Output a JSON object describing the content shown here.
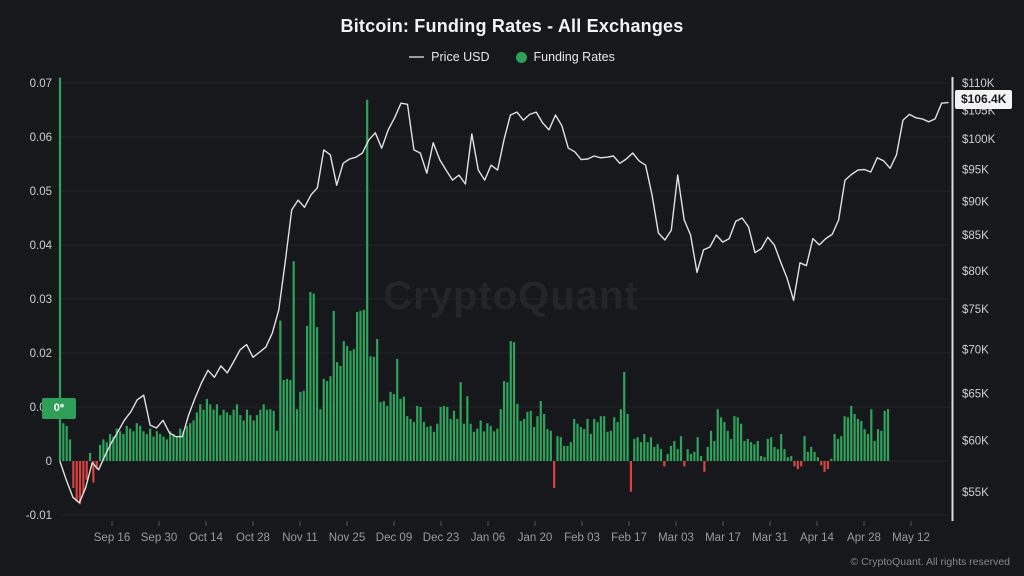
{
  "header": {
    "title": "Bitcoin: Funding Rates - All Exchanges",
    "legend": [
      {
        "label": "Price USD",
        "swatch": "line"
      },
      {
        "label": "Funding Rates",
        "swatch": "dot"
      }
    ]
  },
  "watermark": "CryptoQuant",
  "badges": {
    "current_price": "$106.4K",
    "current_funding": "0*"
  },
  "footer": {
    "copyright": "© CryptoQuant. All rights reserved"
  },
  "colors": {
    "background": "#17181b",
    "grid": "#222329",
    "axis_text": "#cdced1",
    "x_text": "#989aa0",
    "tick": "#53555b",
    "positive": "#2ea35c",
    "negative": "#d84340",
    "price_line": "#dfe0e2",
    "right_axis_line": "#d9dadc",
    "watermark": "#23252b"
  },
  "chart_data": {
    "type": "composite",
    "title": "Bitcoin: Funding Rates - All Exchanges",
    "subtitle_legend": [
      "Price USD",
      "Funding Rates"
    ],
    "x_axis": {
      "tick_labels": [
        "Sep 16",
        "Sep 30",
        "Oct 14",
        "Oct 28",
        "Nov 11",
        "Nov 25",
        "Dec 09",
        "Dec 23",
        "Jan 06",
        "Jan 20",
        "Feb 03",
        "Feb 17",
        "Mar 03",
        "Mar 17",
        "Mar 31",
        "Apr 14",
        "Apr 28",
        "May 12"
      ],
      "granularity": "daily"
    },
    "left_axis": {
      "name": "Funding Rates",
      "scale": "linear",
      "values": [
        0.07,
        0.06,
        0.05,
        0.04,
        0.03,
        0.02,
        0.01,
        0,
        -0.01
      ],
      "labels": [
        "0.07",
        "0.06",
        "0.05",
        "0.04",
        "0.03",
        "0.02",
        "0.01",
        "0",
        "-0.01"
      ],
      "range": [
        -0.013,
        0.071
      ]
    },
    "right_axis": {
      "name": "Price USD",
      "scale": "log",
      "values_k": [
        110,
        105,
        100,
        95,
        90,
        85,
        80,
        75,
        70,
        65,
        60,
        55
      ],
      "labels": [
        "$110K",
        "$105K",
        "$100K",
        "$95K",
        "$90K",
        "$85K",
        "$80K",
        "$75K",
        "$70K",
        "$65K",
        "$60K",
        "$55K"
      ],
      "last_value_label": "$106.4K"
    },
    "series": [
      {
        "name": "Price USD",
        "type": "line",
        "axis": "right",
        "unit": "USD thousands",
        "values": [
          57.9,
          56.1,
          54.5,
          54.0,
          55.4,
          57.8,
          57.1,
          58.5,
          59.8,
          60.9,
          62.1,
          63.0,
          64.3,
          64.8,
          61.6,
          61.3,
          62.1,
          60.8,
          60.4,
          60.4,
          62.7,
          64.5,
          66.2,
          67.6,
          66.8,
          68.1,
          67.3,
          68.6,
          70.0,
          70.6,
          69.1,
          69.7,
          70.3,
          72.0,
          74.9,
          81.2,
          88.7,
          90.2,
          89.1,
          91.0,
          92.1,
          98.2,
          97.4,
          92.5,
          96.0,
          96.7,
          97.0,
          97.7,
          99.9,
          101.1,
          98.5,
          101.6,
          103.7,
          106.3,
          106.1,
          98.2,
          97.7,
          94.4,
          99.4,
          96.6,
          94.9,
          93.3,
          94.1,
          92.7,
          100.9,
          94.9,
          93.3,
          95.7,
          94.9,
          99.9,
          104.2,
          104.7,
          103.3,
          104.3,
          104.7,
          102.8,
          101.6,
          104.2,
          102.3,
          98.5,
          97.9,
          96.6,
          96.7,
          97.2,
          96.9,
          97.0,
          97.2,
          96.0,
          96.7,
          97.7,
          96.4,
          95.7,
          91.0,
          85.3,
          84.3,
          85.7,
          94.1,
          87.2,
          85.0,
          79.8,
          82.9,
          83.3,
          85.0,
          84.0,
          84.5,
          87.0,
          87.5,
          86.2,
          82.5,
          83.1,
          84.7,
          83.6,
          81.2,
          79.0,
          76.1,
          81.1,
          80.7,
          84.5,
          83.6,
          84.5,
          85.1,
          87.2,
          93.3,
          94.2,
          94.9,
          95.0,
          94.6,
          96.9,
          96.4,
          95.2,
          97.4,
          103.3,
          104.3,
          103.7,
          103.5,
          103.0,
          103.5,
          106.3,
          106.4
        ]
      },
      {
        "name": "Funding Rates",
        "type": "bar",
        "axis": "left",
        "values": [
          0.071,
          0.007,
          0.0065,
          0.004,
          -0.005,
          -0.0075,
          -0.008,
          -0.006,
          -0.0035,
          0.0015,
          -0.004,
          -0.0015,
          0.003,
          0.004,
          0.0035,
          0.005,
          0.0045,
          0.006,
          0.0055,
          0.005,
          0.0065,
          0.006,
          0.0055,
          0.007,
          0.0065,
          0.0055,
          0.005,
          0.006,
          0.0045,
          0.0055,
          0.005,
          0.0045,
          0.004,
          0.0055,
          0.005,
          0.0045,
          0.006,
          0.0055,
          0.0065,
          0.007,
          0.0075,
          0.009,
          0.0105,
          0.0095,
          0.0115,
          0.0105,
          0.0095,
          0.0105,
          0.0085,
          0.0095,
          0.009,
          0.0085,
          0.0095,
          0.0105,
          0.0085,
          0.0075,
          0.0095,
          0.0085,
          0.0075,
          0.0085,
          0.0095,
          0.0105,
          0.0095,
          0.0096,
          0.0093,
          0.0056,
          0.026,
          0.015,
          0.0152,
          0.015,
          0.037,
          0.0096,
          0.0128,
          0.013,
          0.025,
          0.0313,
          0.031,
          0.0248,
          0.0096,
          0.0152,
          0.0148,
          0.0157,
          0.0278,
          0.0183,
          0.0176,
          0.0222,
          0.0213,
          0.0204,
          0.0207,
          0.0276,
          0.0278,
          0.028,
          0.0669,
          0.0194,
          0.0193,
          0.0226,
          0.0109,
          0.0111,
          0.0102,
          0.0128,
          0.0124,
          0.0189,
          0.0115,
          0.0119,
          0.0083,
          0.0078,
          0.0072,
          0.0102,
          0.01,
          0.0072,
          0.0063,
          0.0065,
          0.0054,
          0.0069,
          0.01,
          0.0102,
          0.01,
          0.0078,
          0.0093,
          0.0078,
          0.0146,
          0.0069,
          0.012,
          0.0069,
          0.0054,
          0.006,
          0.0075,
          0.0055,
          0.007,
          0.0065,
          0.0055,
          0.006,
          0.0096,
          0.0148,
          0.0146,
          0.0222,
          0.022,
          0.0106,
          0.0074,
          0.0078,
          0.0091,
          0.0093,
          0.0063,
          0.0083,
          0.0111,
          0.0087,
          0.0059,
          0.0056,
          -0.005,
          0.0046,
          0.0044,
          0.0028,
          0.0028,
          0.0035,
          0.0078,
          0.0069,
          0.0063,
          0.0059,
          0.0078,
          0.005,
          0.0078,
          0.0072,
          0.0083,
          0.0083,
          0.0054,
          0.0056,
          0.0081,
          0.0072,
          0.0096,
          0.0165,
          0.0087,
          -0.0057,
          0.0041,
          0.0044,
          0.0035,
          0.005,
          0.0035,
          0.0044,
          0.0026,
          0.0031,
          0.0022,
          -0.001,
          0.0013,
          0.0028,
          0.0037,
          0.0022,
          0.0046,
          -0.001,
          0.0022,
          0.0013,
          0.0017,
          0.0044,
          0.0009,
          -0.002,
          0.0026,
          0.0056,
          0.0037,
          0.0096,
          0.0081,
          0.0072,
          0.0056,
          0.0041,
          0.0083,
          0.0081,
          0.0069,
          0.0037,
          0.0041,
          0.0035,
          0.0031,
          0.0037,
          0.0009,
          0.0007,
          0.0041,
          0.0044,
          0.0026,
          0.0022,
          0.005,
          0.0022,
          0.0007,
          0.0009,
          -0.001,
          -0.0015,
          -0.001,
          0.0046,
          0.0017,
          0.0026,
          0.0017,
          0.0007,
          -0.0008,
          -0.002,
          -0.0015,
          0.0004,
          0.005,
          0.0041,
          0.0046,
          0.0083,
          0.0081,
          0.0102,
          0.0087,
          0.0078,
          0.0074,
          0.0059,
          0.005,
          0.0096,
          0.0037,
          0.0059,
          0.0056,
          0.0093,
          0.0096
        ]
      }
    ]
  }
}
